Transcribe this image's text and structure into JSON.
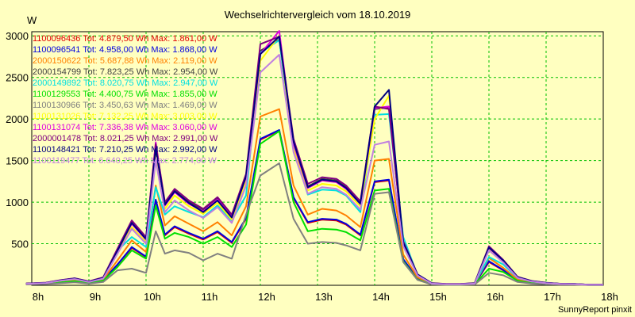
{
  "chart_data": {
    "type": "line",
    "title": "Wechselrichtervergleich vom 18.10.2019",
    "ylabel": "W",
    "xlabel": "",
    "footer": "SunnyReport pinxit",
    "ylim": [
      0,
      3050
    ],
    "xlim": [
      8,
      18
    ],
    "yticks": [
      500,
      1000,
      1500,
      2000,
      2500,
      3000
    ],
    "xticks": [
      {
        "v": 8,
        "label": "8h"
      },
      {
        "v": 9,
        "label": "9h"
      },
      {
        "v": 10,
        "label": "10h"
      },
      {
        "v": 11,
        "label": "11h"
      },
      {
        "v": 12,
        "label": "12h"
      },
      {
        "v": 13,
        "label": "13h"
      },
      {
        "v": 14,
        "label": "14h"
      },
      {
        "v": 15,
        "label": "15h"
      },
      {
        "v": 16,
        "label": "16h"
      },
      {
        "v": 17,
        "label": "17h"
      },
      {
        "v": 18,
        "label": "18h"
      }
    ],
    "grid": true,
    "legend_placement": "top-left",
    "x": [
      7.9,
      8.25,
      8.5,
      8.75,
      9.0,
      9.25,
      9.5,
      9.75,
      10.0,
      10.17,
      10.33,
      10.5,
      10.75,
      11.0,
      11.25,
      11.5,
      11.75,
      12.0,
      12.33,
      12.58,
      12.83,
      13.08,
      13.33,
      13.5,
      13.75,
      14.0,
      14.25,
      14.5,
      14.75,
      15.0,
      15.25,
      15.5,
      15.75,
      16.0,
      16.25,
      16.5,
      16.75,
      17.0,
      17.25,
      17.5,
      17.75,
      18.0
    ],
    "series": [
      {
        "name": "1100096436 Tot: 4.879,50 Wh Max: 1.861,00 W",
        "color": "#e00000",
        "values": [
          15,
          20,
          40,
          55,
          30,
          60,
          250,
          450,
          340,
          1020,
          600,
          700,
          620,
          550,
          640,
          510,
          800,
          1750,
          1861,
          1050,
          750,
          790,
          780,
          730,
          600,
          1240,
          1260,
          310,
          80,
          15,
          10,
          10,
          15,
          280,
          180,
          60,
          30,
          20,
          10,
          10,
          5,
          5
        ]
      },
      {
        "name": "1100096541 Tot: 4.958,00 Wh Max: 1.868,00 W",
        "color": "#0000e0",
        "values": [
          15,
          20,
          40,
          55,
          30,
          60,
          250,
          460,
          345,
          1030,
          610,
          710,
          630,
          560,
          650,
          520,
          810,
          1760,
          1868,
          1060,
          760,
          800,
          790,
          740,
          610,
          1250,
          1270,
          315,
          82,
          15,
          10,
          10,
          15,
          290,
          185,
          62,
          30,
          20,
          10,
          10,
          5,
          5
        ]
      },
      {
        "name": "2000150622 Tot: 5.687,88 Wh Max: 2.119,00 W",
        "color": "#ff8000",
        "values": [
          15,
          25,
          45,
          60,
          35,
          70,
          300,
          540,
          400,
          1200,
          720,
          830,
          740,
          650,
          760,
          600,
          950,
          2030,
          2119,
          1200,
          850,
          920,
          900,
          840,
          700,
          1500,
          1520,
          370,
          95,
          18,
          12,
          12,
          18,
          330,
          210,
          70,
          35,
          22,
          12,
          12,
          6,
          6
        ]
      },
      {
        "name": "2000154799 Tot: 7.823,25 Wh Max: 2.954,00 W",
        "color": "#404040",
        "values": [
          20,
          30,
          60,
          80,
          45,
          90,
          420,
          760,
          560,
          1660,
          980,
          1140,
          1000,
          900,
          1040,
          830,
          1320,
          2820,
          2954,
          1720,
          1190,
          1280,
          1260,
          1180,
          990,
          2120,
          2140,
          520,
          130,
          25,
          15,
          15,
          25,
          460,
          300,
          100,
          50,
          30,
          18,
          15,
          8,
          8
        ]
      },
      {
        "name": "2000149892 Tot: 8.020,75 Wh Max: 2.947,00 W",
        "color": "#00e0e0",
        "values": [
          20,
          30,
          60,
          85,
          45,
          90,
          420,
          580,
          460,
          1180,
          850,
          950,
          880,
          820,
          960,
          780,
          1080,
          2800,
          2947,
          1650,
          1090,
          1150,
          1140,
          1080,
          880,
          2050,
          2060,
          580,
          120,
          25,
          12,
          15,
          25,
          340,
          250,
          90,
          45,
          30,
          18,
          15,
          8,
          8
        ]
      },
      {
        "name": "1100129553 Tot: 4.400,75 Wh Max: 1.855,00 W",
        "color": "#00e000",
        "values": [
          15,
          20,
          35,
          50,
          28,
          55,
          220,
          420,
          320,
          960,
          560,
          630,
          580,
          500,
          580,
          460,
          730,
          1700,
          1855,
          1000,
          650,
          680,
          670,
          640,
          540,
          1140,
          1160,
          290,
          70,
          12,
          8,
          8,
          12,
          200,
          160,
          55,
          25,
          18,
          10,
          10,
          4,
          4
        ]
      },
      {
        "name": "1100130966 Tot: 3.450,63 Wh Max: 1.469,00 W",
        "color": "#808080",
        "values": [
          10,
          15,
          25,
          35,
          20,
          40,
          180,
          200,
          150,
          650,
          380,
          420,
          390,
          300,
          380,
          320,
          850,
          1320,
          1469,
          800,
          500,
          520,
          510,
          480,
          420,
          1100,
          1120,
          280,
          65,
          10,
          6,
          6,
          10,
          150,
          120,
          40,
          20,
          12,
          8,
          8,
          3,
          3
        ]
      },
      {
        "name": "1100131026 Tot: 7.132,25 Wh Max: 3.003,00 W",
        "color": "#ffff00",
        "values": [
          20,
          30,
          55,
          75,
          42,
          85,
          400,
          700,
          520,
          1580,
          920,
          1080,
          950,
          860,
          990,
          790,
          1260,
          2700,
          3003,
          1640,
          1140,
          1220,
          1200,
          1130,
          950,
          2000,
          2280,
          500,
          125,
          22,
          14,
          14,
          22,
          440,
          290,
          95,
          48,
          28,
          16,
          14,
          7,
          7
        ]
      },
      {
        "name": "1100131074 Tot: 7.336,38 Wh Max: 3.060,00 W",
        "color": "#e000e0",
        "values": [
          20,
          30,
          60,
          80,
          45,
          90,
          430,
          740,
          550,
          1720,
          960,
          1120,
          980,
          890,
          1030,
          820,
          1300,
          2780,
          3060,
          1700,
          1170,
          1260,
          1240,
          1160,
          980,
          2130,
          2150,
          510,
          128,
          24,
          14,
          14,
          24,
          450,
          295,
          98,
          49,
          29,
          17,
          14,
          7,
          7
        ]
      },
      {
        "name": "2000001478 Tot: 8.021,25 Wh Max: 2.991,00 W",
        "color": "#800080",
        "values": [
          22,
          32,
          62,
          85,
          48,
          95,
          440,
          780,
          580,
          1700,
          1000,
          1160,
          1020,
          920,
          1060,
          850,
          1340,
          2900,
          2991,
          1760,
          1220,
          1300,
          1280,
          1200,
          1010,
          2150,
          2120,
          530,
          132,
          26,
          16,
          16,
          26,
          470,
          305,
          102,
          52,
          31,
          19,
          16,
          8,
          8
        ]
      },
      {
        "name": "1100148421 Tot: 7.210,25 Wh Max: 2.992,00 W",
        "color": "#000080",
        "values": [
          20,
          30,
          58,
          80,
          44,
          88,
          415,
          750,
          555,
          1640,
          970,
          1130,
          990,
          880,
          1020,
          815,
          1310,
          2780,
          2992,
          1730,
          1180,
          1270,
          1250,
          1170,
          980,
          2150,
          2350,
          515,
          130,
          24,
          14,
          14,
          24,
          455,
          298,
          99,
          50,
          30,
          18,
          15,
          7,
          7
        ]
      },
      {
        "name": "1100119477 Tot: 6.640,25 Wh Max: 2.774,00 W",
        "color": "#c080e0",
        "values": [
          18,
          28,
          55,
          75,
          40,
          80,
          380,
          680,
          500,
          1500,
          880,
          1020,
          900,
          810,
          940,
          750,
          1200,
          2560,
          2774,
          1600,
          1100,
          1180,
          1160,
          1090,
          910,
          1690,
          1730,
          470,
          118,
          20,
          13,
          13,
          20,
          420,
          275,
          90,
          45,
          27,
          16,
          13,
          6,
          6
        ]
      }
    ]
  }
}
